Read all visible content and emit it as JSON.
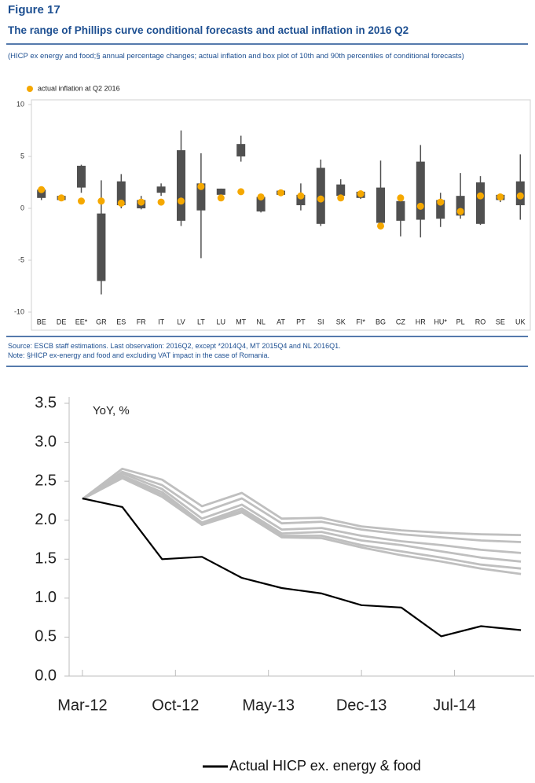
{
  "chart_data": [
    {
      "type": "box",
      "label": "Figure 17",
      "title": "The range of Phillips curve conditional forecasts and actual inflation in 2016 Q2",
      "subtitle": "(HICP ex energy and food;§ annual percentage changes; actual inflation and box plot of 10th and 90th percentiles of conditional forecasts)",
      "notes": [
        "Source: ESCB staff estimations. Last observation: 2016Q2, except *2014Q4, MT 2015Q4 and NL 2016Q1.",
        "Note: §HICP ex-energy and food and excluding VAT impact in the case of Romania."
      ],
      "categories": [
        "BE",
        "DE",
        "EE*",
        "GR",
        "ES",
        "FR",
        "IT",
        "LV",
        "LT",
        "LU",
        "MT",
        "NL",
        "AT",
        "PT",
        "SI",
        "SK",
        "FI*",
        "BG",
        "CZ",
        "HR",
        "HU*",
        "PL",
        "RO",
        "SE",
        "UK"
      ],
      "whisker_low": [
        0.8,
        0.7,
        1.5,
        -8.3,
        0.0,
        -0.1,
        1.2,
        -1.7,
        -4.8,
        1.2,
        4.5,
        -0.4,
        1.2,
        -0.2,
        -1.7,
        1.0,
        0.9,
        -1.5,
        -2.7,
        -2.8,
        -1.8,
        -1.0,
        -1.6,
        0.6,
        -1.1
      ],
      "box_low": [
        1.0,
        0.8,
        2.0,
        -7.0,
        0.3,
        0.0,
        1.5,
        -1.2,
        -0.2,
        1.3,
        5.0,
        -0.3,
        1.3,
        0.3,
        -1.5,
        1.2,
        1.0,
        -1.4,
        -1.2,
        -1.1,
        -1.0,
        -0.7,
        -1.5,
        0.8,
        0.3
      ],
      "box_high": [
        1.8,
        1.2,
        4.1,
        -0.5,
        2.6,
        0.8,
        2.1,
        5.6,
        2.4,
        1.9,
        6.2,
        1.1,
        1.7,
        1.3,
        3.9,
        2.3,
        1.6,
        2.0,
        0.7,
        4.5,
        0.8,
        1.2,
        2.5,
        1.3,
        2.6
      ],
      "whisker_high": [
        2.0,
        1.3,
        4.2,
        2.7,
        3.3,
        1.2,
        2.4,
        7.5,
        5.3,
        1.9,
        7.0,
        1.1,
        1.8,
        2.4,
        4.7,
        2.8,
        1.7,
        4.6,
        1.0,
        6.1,
        1.5,
        3.4,
        3.1,
        1.4,
        5.2
      ],
      "box_color": "#505050",
      "actual": {
        "name": "actual inflation at Q2 2016",
        "color": "#f5a800",
        "values": [
          1.8,
          1.0,
          0.7,
          0.7,
          0.5,
          0.6,
          0.6,
          0.7,
          2.1,
          1.0,
          1.6,
          1.1,
          1.5,
          1.2,
          0.9,
          1.0,
          1.4,
          -1.7,
          1.0,
          0.2,
          0.6,
          -0.3,
          1.2,
          1.1,
          1.2
        ]
      },
      "ylim": [
        -10,
        10
      ],
      "yticks": [
        -10,
        -5,
        0,
        5,
        10
      ],
      "legend": "top-left"
    },
    {
      "type": "line",
      "annotation": "YoY, %",
      "x": [
        "2012-03",
        "2012-06",
        "2012-09",
        "2012-12",
        "2013-03",
        "2013-06",
        "2013-09",
        "2013-12",
        "2014-03",
        "2014-06",
        "2014-09",
        "2014-12"
      ],
      "series": [
        {
          "color": "#bfbfbf",
          "values": [
            2.27,
            2.66,
            2.52,
            2.18,
            2.35,
            2.02,
            2.03,
            1.92,
            1.87,
            1.84,
            1.82,
            1.81
          ]
        },
        {
          "color": "#bfbfbf",
          "values": [
            2.27,
            2.62,
            2.45,
            2.1,
            2.28,
            1.96,
            1.98,
            1.88,
            1.82,
            1.78,
            1.74,
            1.72
          ]
        },
        {
          "color": "#bfbfbf",
          "values": [
            2.27,
            2.6,
            2.4,
            2.02,
            2.2,
            1.88,
            1.9,
            1.8,
            1.73,
            1.68,
            1.62,
            1.58
          ]
        },
        {
          "color": "#bfbfbf",
          "values": [
            2.27,
            2.57,
            2.36,
            1.97,
            2.15,
            1.83,
            1.85,
            1.74,
            1.68,
            1.6,
            1.52,
            1.47
          ]
        },
        {
          "color": "#bfbfbf",
          "values": [
            2.27,
            2.55,
            2.33,
            1.95,
            2.12,
            1.8,
            1.8,
            1.68,
            1.6,
            1.52,
            1.43,
            1.38
          ]
        },
        {
          "color": "#bfbfbf",
          "values": [
            2.27,
            2.54,
            2.3,
            1.94,
            2.1,
            1.78,
            1.77,
            1.65,
            1.55,
            1.47,
            1.38,
            1.31
          ]
        },
        {
          "name": "Actual HICP ex. energy & food",
          "color": "#000000",
          "values": [
            2.28,
            2.17,
            1.5,
            1.53,
            1.26,
            1.13,
            1.06,
            0.91,
            0.88,
            0.51,
            0.64,
            0.59
          ]
        }
      ],
      "xlim": [
        "2012-02",
        "2015-01"
      ],
      "xticks": [
        {
          "value": "2012-03",
          "label": "Mar-12"
        },
        {
          "value": "2012-10",
          "label": "Oct-12"
        },
        {
          "value": "2013-05",
          "label": "May-13"
        },
        {
          "value": "2013-12",
          "label": "Dec-13"
        },
        {
          "value": "2014-07",
          "label": "Jul-14"
        }
      ],
      "ylim": [
        0,
        3.5
      ],
      "yticks": [
        {
          "value": 0,
          "label": "0.0"
        },
        0.5,
        {
          "value": 1,
          "label": "1.0"
        },
        1.5,
        {
          "value": 2,
          "label": "2.0"
        },
        2.5,
        {
          "value": 3,
          "label": "3.0"
        },
        3.5
      ],
      "legend": "bottom"
    }
  ]
}
